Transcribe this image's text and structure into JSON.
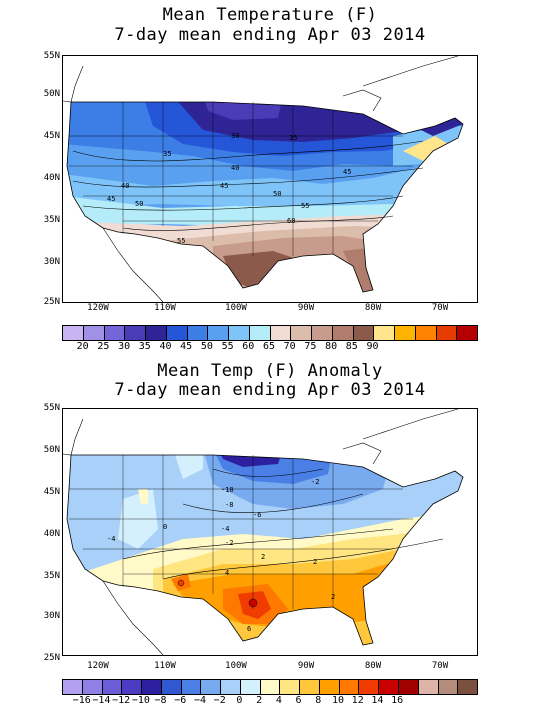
{
  "panels": [
    {
      "title_line1": "Mean Temperature (F)",
      "title_line2": "7-day mean ending Apr 03 2014",
      "lat_labels": [
        "55N",
        "50N",
        "45N",
        "40N",
        "35N",
        "30N",
        "25N"
      ],
      "lon_labels": [
        "120W",
        "110W",
        "100W",
        "90W",
        "80W",
        "70W"
      ],
      "legend_colors": [
        "#c8b4f0",
        "#a091e6",
        "#7466d8",
        "#4a3bb7",
        "#2e2496",
        "#2656d8",
        "#3c7de6",
        "#5aa0f0",
        "#7ec4f8",
        "#b4ecfa",
        "#f0dcd2",
        "#dcbcaa",
        "#c89c8c",
        "#b07c6c",
        "#8c5a4a",
        "#ffe68c",
        "#ffb400",
        "#ff8200",
        "#e63c00",
        "#b40000"
      ],
      "legend_labels": [
        "20",
        "25",
        "30",
        "35",
        "40",
        "45",
        "50",
        "55",
        "60",
        "65",
        "70",
        "75",
        "80",
        "85",
        "90"
      ],
      "contour_labels": [
        "30",
        "35",
        "35",
        "40",
        "40",
        "45",
        "45",
        "45",
        "50",
        "50",
        "55",
        "55",
        "60"
      ]
    },
    {
      "title_line1": "Mean Temp (F) Anomaly",
      "title_line2": "7-day mean ending Apr 03 2014",
      "lat_labels": [
        "55N",
        "50N",
        "45N",
        "40N",
        "35N",
        "30N",
        "25N"
      ],
      "lon_labels": [
        "120W",
        "110W",
        "100W",
        "90W",
        "80W",
        "70W"
      ],
      "legend_colors": [
        "#b4a0f0",
        "#9080e6",
        "#6c5cd8",
        "#4c3cc4",
        "#2c20a0",
        "#3058d0",
        "#4a80e6",
        "#78aaf0",
        "#a8d0f8",
        "#d4f0fc",
        "#fffac8",
        "#ffe682",
        "#ffc83c",
        "#ffa000",
        "#ff7800",
        "#f03c00",
        "#c80000",
        "#a00000",
        "#dcb4a8",
        "#b48c7c",
        "#7c5040"
      ],
      "legend_labels": [
        "−16",
        "−14",
        "−12",
        "−10",
        "−8",
        "−6",
        "−4",
        "−2",
        "0",
        "2",
        "4",
        "6",
        "8",
        "10",
        "12",
        "14",
        "16"
      ],
      "contour_labels": [
        "-10",
        "-8",
        "-6",
        "-4",
        "-2",
        "-4",
        "0",
        "2",
        "4",
        "6",
        "2",
        "2",
        "-2"
      ]
    }
  ]
}
